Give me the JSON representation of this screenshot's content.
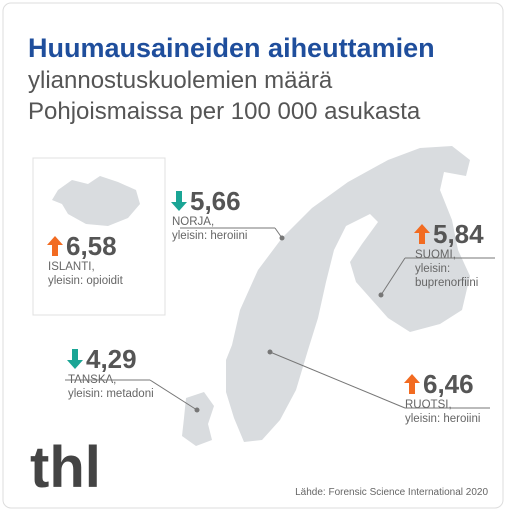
{
  "header": {
    "title": "Huumausaineiden aiheuttamien",
    "subtitle": [
      "yliannostuskuolemien määrä",
      "Pohjoismaissa per 100 000 asukasta"
    ]
  },
  "countries": [
    {
      "value": "6,58",
      "trend": "up",
      "name": "ISLANTI,",
      "drug": "yleisin: opioidit"
    },
    {
      "value": "5,66",
      "trend": "down",
      "name": "NORJA,",
      "drug": "yleisin: heroiini"
    },
    {
      "value": "5,84",
      "trend": "up",
      "name": "SUOMI,",
      "drug": [
        "yleisin:",
        "buprenorfiini"
      ]
    },
    {
      "value": "4,29",
      "trend": "down",
      "name": "TANSKA,",
      "drug": "yleisin: metadoni"
    },
    {
      "value": "6,46",
      "trend": "up",
      "name": "RUOTSI,",
      "drug": "yleisin: heroiini"
    }
  ],
  "colors": {
    "up": "#f26b21",
    "down": "#1aa595"
  },
  "logo": "thl",
  "source": "Lähde: Forensic Science International 2020"
}
